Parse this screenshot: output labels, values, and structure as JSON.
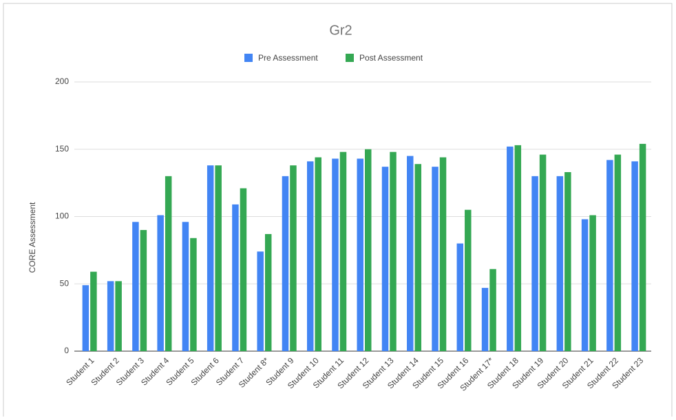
{
  "chart_data": {
    "type": "bar",
    "title": "Gr2",
    "y_label": "CORE Assessment",
    "categories": [
      "Student 1",
      "Student 2",
      "Student 3",
      "Student 4",
      "Student 5",
      "Student 6",
      "Student 7",
      "Student 8*",
      "Student 9",
      "Student 10",
      "Student 11",
      "Student 12",
      "Student 13",
      "Student 14",
      "Student 15",
      "Student 16",
      "Student 17*",
      "Student 18",
      "Student 19",
      "Student 20",
      "Student 21",
      "Student 22",
      "Student 23"
    ],
    "series": [
      {
        "name": "Pre Assessment",
        "color": "#4285f4",
        "values": [
          49,
          52,
          96,
          101,
          96,
          138,
          109,
          74,
          130,
          141,
          143,
          143,
          137,
          145,
          137,
          80,
          47,
          152,
          130,
          130,
          98,
          142,
          141
        ]
      },
      {
        "name": "Post Assessment",
        "color": "#34a853",
        "values": [
          59,
          52,
          90,
          130,
          84,
          138,
          121,
          87,
          138,
          144,
          148,
          150,
          148,
          139,
          144,
          105,
          61,
          153,
          146,
          133,
          101,
          146,
          154
        ]
      }
    ],
    "ylim": [
      0,
      200
    ],
    "yticks": [
      0,
      50,
      100,
      150,
      200
    ],
    "grid": true,
    "legend": "top"
  }
}
